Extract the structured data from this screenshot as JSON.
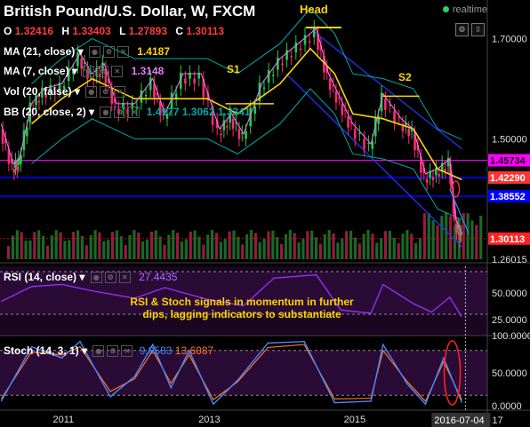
{
  "header": {
    "title": "British Pound/U.S. Dollar, W, FXCM",
    "realtime_label": "realtime",
    "ohlc": [
      {
        "key": "O",
        "value": "1.32416"
      },
      {
        "key": "H",
        "value": "1.33403"
      },
      {
        "key": "L",
        "value": "1.27893"
      },
      {
        "key": "C",
        "value": "1.30113"
      }
    ]
  },
  "indicators": {
    "ma21": {
      "label": "MA (21, close)",
      "value": "1.4187",
      "color": "#ffd400"
    },
    "ma7": {
      "label": "MA (7, close)",
      "value": "1.3148",
      "color": "#e879f9"
    },
    "vol": {
      "label": "Vol (20, false)"
    },
    "bb": {
      "label": "BB (20, close, 2)",
      "values": [
        "1.4177",
        "1.3062",
        "1.3341"
      ],
      "color": "#00a9a9"
    },
    "rsi": {
      "label": "RSI (14, close)",
      "value": "27.4435"
    },
    "stoch": {
      "label": "Stoch (14, 3, 1)",
      "k": "9.9583",
      "d": "13.6087"
    }
  },
  "annotations": {
    "head": "Head",
    "s1": "S1",
    "s2": "S2",
    "note": "RSI & Stoch signals in momentum in further dips, lagging indicators to substantiate"
  },
  "chart_data": {
    "type": "line",
    "colors": {
      "up": "#26c94b",
      "down": "#ff2a6d",
      "ma21": "#ffd400",
      "bb": "#00a9a9",
      "support": "#ff00ff",
      "level": "#0000ff",
      "trend": "#2233ff",
      "rsi": "#9b30ff",
      "stoch_k": "#4488ff",
      "stoch_d": "#ff7722"
    },
    "price_axis": {
      "ticks": [
        "1.70000",
        "1.50000",
        "1.26015"
      ],
      "tick_values": [
        1.7,
        1.5,
        1.26015
      ],
      "level_labels": [
        {
          "text": "1.45734",
          "value": 1.45734,
          "color": "#ff00ff",
          "fg": "#000"
        },
        {
          "text": "1.42290",
          "value": 1.4229,
          "color": "#ff3333",
          "fg": "#fff"
        },
        {
          "text": "1.38552",
          "value": 1.38552,
          "color": "#0000ff",
          "fg": "#fff"
        },
        {
          "text": "1.30113",
          "value": 1.30113,
          "color": "#ff2222",
          "fg": "#fff"
        }
      ]
    },
    "horizontal_lines": [
      1.4229,
      1.38552
    ],
    "support_lines": [
      1.45734,
      1.4229
    ],
    "rsi_axis": {
      "ticks": [
        "50.0000",
        "25.0000"
      ],
      "tick_values": [
        50,
        25
      ]
    },
    "stoch_axis": {
      "ticks": [
        "100.0000",
        "50.0000",
        "0.0000"
      ],
      "tick_values": [
        100,
        50,
        0
      ]
    },
    "x_axis": {
      "ticks": [
        "2011",
        "2013",
        "2015"
      ],
      "highlight": "2016-07-04",
      "trailing": "17"
    },
    "price_series": [
      [
        "2010-03",
        1.52
      ],
      [
        "2010-05",
        1.44
      ],
      [
        "2010-06",
        1.45
      ],
      [
        "2010-08",
        1.56
      ],
      [
        "2010-10",
        1.59
      ],
      [
        "2011-01",
        1.6
      ],
      [
        "2011-04",
        1.66
      ],
      [
        "2011-06",
        1.62
      ],
      [
        "2011-08",
        1.64
      ],
      [
        "2011-10",
        1.56
      ],
      [
        "2012-01",
        1.56
      ],
      [
        "2012-04",
        1.61
      ],
      [
        "2012-06",
        1.54
      ],
      [
        "2012-09",
        1.62
      ],
      [
        "2012-12",
        1.62
      ],
      [
        "2013-03",
        1.51
      ],
      [
        "2013-05",
        1.54
      ],
      [
        "2013-07",
        1.5
      ],
      [
        "2013-10",
        1.6
      ],
      [
        "2014-01",
        1.65
      ],
      [
        "2014-04",
        1.68
      ],
      [
        "2014-07",
        1.71
      ],
      [
        "2014-09",
        1.62
      ],
      [
        "2014-11",
        1.57
      ],
      [
        "2015-01",
        1.52
      ],
      [
        "2015-04",
        1.48
      ],
      [
        "2015-06",
        1.58
      ],
      [
        "2015-09",
        1.53
      ],
      [
        "2015-11",
        1.51
      ],
      [
        "2016-01",
        1.42
      ],
      [
        "2016-03",
        1.43
      ],
      [
        "2016-05",
        1.45
      ],
      [
        "2016-06",
        1.33
      ],
      [
        "2016-07",
        1.30113
      ]
    ],
    "ma21_series": [
      [
        "2010-08",
        1.53
      ],
      [
        "2011-01",
        1.58
      ],
      [
        "2011-06",
        1.62
      ],
      [
        "2012-01",
        1.58
      ],
      [
        "2012-06",
        1.58
      ],
      [
        "2013-01",
        1.58
      ],
      [
        "2013-06",
        1.55
      ],
      [
        "2014-01",
        1.61
      ],
      [
        "2014-06",
        1.68
      ],
      [
        "2014-10",
        1.63
      ],
      [
        "2015-01",
        1.55
      ],
      [
        "2015-06",
        1.54
      ],
      [
        "2015-11",
        1.52
      ],
      [
        "2016-03",
        1.44
      ],
      [
        "2016-07",
        1.4187
      ]
    ],
    "rsi_series": [
      [
        "2010-03",
        42
      ],
      [
        "2010-08",
        56
      ],
      [
        "2011-01",
        58
      ],
      [
        "2011-06",
        52
      ],
      [
        "2012-01",
        45
      ],
      [
        "2012-06",
        55
      ],
      [
        "2013-01",
        44
      ],
      [
        "2013-07",
        38
      ],
      [
        "2013-12",
        64
      ],
      [
        "2014-07",
        67
      ],
      [
        "2014-11",
        34
      ],
      [
        "2015-04",
        31
      ],
      [
        "2015-06",
        58
      ],
      [
        "2015-11",
        40
      ],
      [
        "2016-02",
        32
      ],
      [
        "2016-05",
        46
      ],
      [
        "2016-07",
        27.4435
      ]
    ],
    "stoch_k_series": [
      [
        "2010-03",
        12
      ],
      [
        "2010-08",
        85
      ],
      [
        "2011-01",
        70
      ],
      [
        "2011-04",
        92
      ],
      [
        "2011-09",
        18
      ],
      [
        "2012-01",
        45
      ],
      [
        "2012-04",
        88
      ],
      [
        "2012-07",
        30
      ],
      [
        "2012-10",
        80
      ],
      [
        "2013-02",
        8
      ],
      [
        "2013-06",
        40
      ],
      [
        "2013-11",
        90
      ],
      [
        "2014-05",
        92
      ],
      [
        "2014-10",
        10
      ],
      [
        "2015-04",
        12
      ],
      [
        "2015-06",
        88
      ],
      [
        "2015-10",
        35
      ],
      [
        "2016-01",
        8
      ],
      [
        "2016-04",
        70
      ],
      [
        "2016-07",
        9.9583
      ]
    ],
    "stoch_d_series": [
      [
        "2010-03",
        15
      ],
      [
        "2010-08",
        78
      ],
      [
        "2011-01",
        74
      ],
      [
        "2011-04",
        85
      ],
      [
        "2011-09",
        25
      ],
      [
        "2012-01",
        42
      ],
      [
        "2012-04",
        80
      ],
      [
        "2012-07",
        36
      ],
      [
        "2012-10",
        74
      ],
      [
        "2013-02",
        14
      ],
      [
        "2013-06",
        38
      ],
      [
        "2013-11",
        84
      ],
      [
        "2014-05",
        88
      ],
      [
        "2014-10",
        15
      ],
      [
        "2015-04",
        16
      ],
      [
        "2015-06",
        80
      ],
      [
        "2015-10",
        38
      ],
      [
        "2016-01",
        12
      ],
      [
        "2016-04",
        65
      ],
      [
        "2016-07",
        13.6087
      ]
    ]
  }
}
